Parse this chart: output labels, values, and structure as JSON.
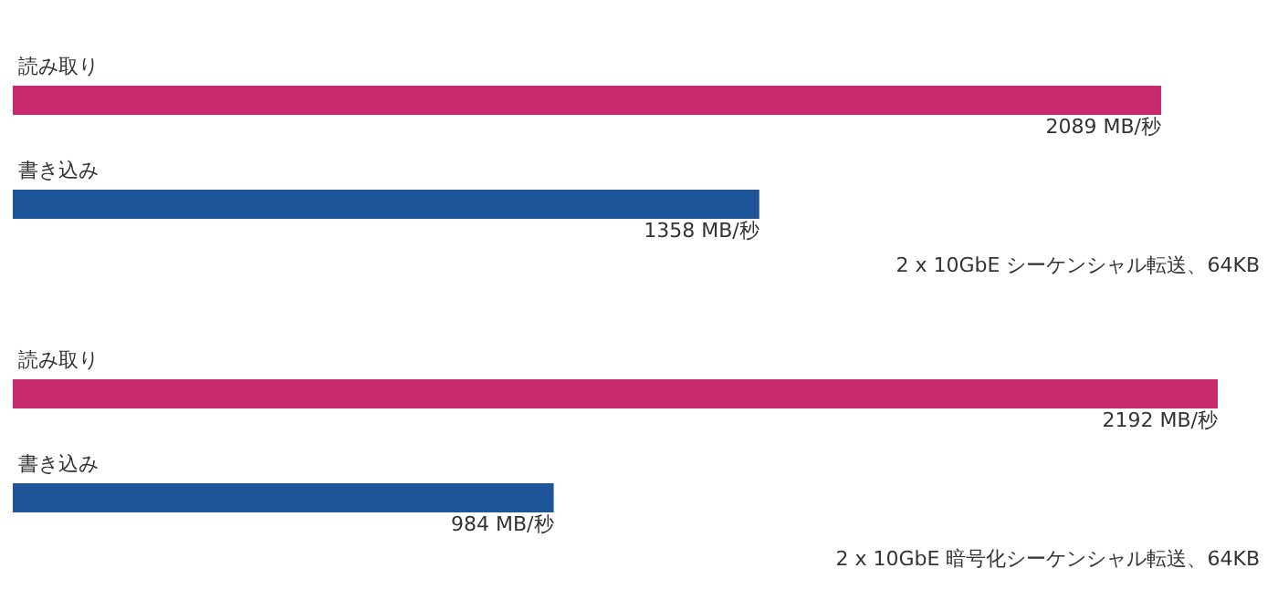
{
  "chart_data": [
    {
      "type": "bar",
      "orientation": "horizontal",
      "categories": [
        "読み取り",
        "書き込み"
      ],
      "values": [
        2089,
        1358
      ],
      "colors": [
        "#c8296e",
        "#1f5599"
      ],
      "value_labels": [
        "2089 MB/秒",
        "1358 MB/秒"
      ],
      "annotations": [
        "2 x 10GbE シーケンシャル転送、64KB"
      ],
      "grid": false,
      "legend": false
    },
    {
      "type": "bar",
      "orientation": "horizontal",
      "categories": [
        "読み取り",
        "書き込み"
      ],
      "values": [
        2192,
        984
      ],
      "colors": [
        "#c8296e",
        "#1f5599"
      ],
      "value_labels": [
        "2192 MB/秒",
        "984 MB/秒"
      ],
      "annotations": [
        "2 x 10GbE 暗号化シーケンシャル転送、64KB"
      ],
      "grid": false,
      "legend": false
    }
  ]
}
